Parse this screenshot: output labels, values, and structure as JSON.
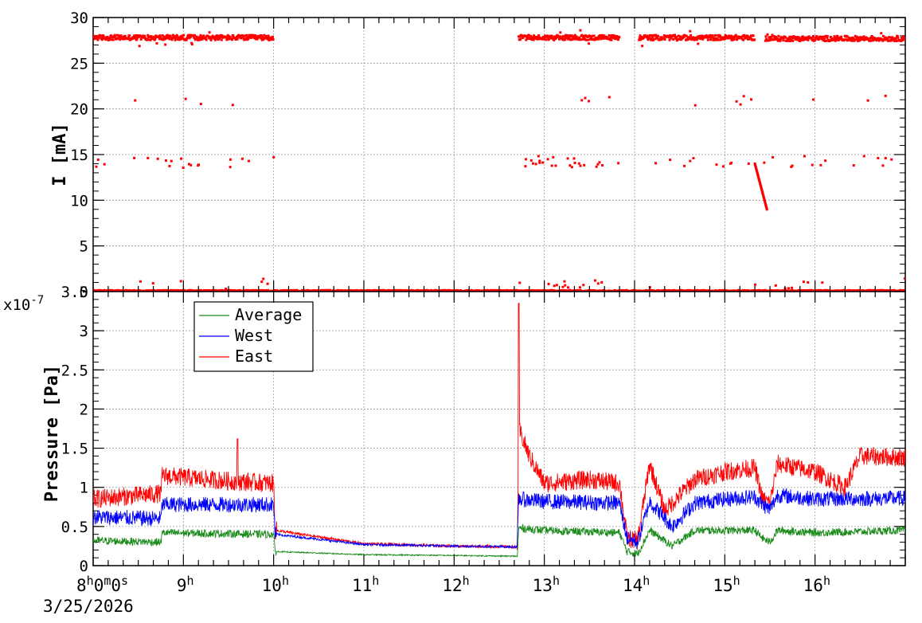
{
  "chart_data": [
    {
      "type": "scatter",
      "panel": "top",
      "ylabel": "I [mA]",
      "ylim": [
        0,
        30
      ],
      "yticks": [
        "0",
        "5",
        "10",
        "15",
        "20",
        "25",
        "30"
      ],
      "grid": true,
      "series": [
        {
          "color": "#ff0000",
          "segments": [
            {
              "x": [
                "8:00",
                "10:00"
              ],
              "y": 27.8
            },
            {
              "x": [
                "12:43",
                "13:50"
              ],
              "y": 27.8
            },
            {
              "x": [
                "14:03",
                "15:20"
              ],
              "y": 27.8
            },
            {
              "x": [
                "15:27",
                "17:00"
              ],
              "y": 27.7
            },
            {
              "x": [
                "8:00",
                "17:00"
              ],
              "y": 0.0
            }
          ],
          "sparse_bands_y": [
            14.2,
            21.0,
            0.8
          ],
          "decay_segment": {
            "x": [
              "15:20",
              "15:28"
            ],
            "y": [
              14.0,
              9.0
            ]
          }
        }
      ]
    },
    {
      "type": "line",
      "panel": "bottom",
      "ylabel": "Pressure [Pa]",
      "y_multiplier": "x10",
      "y_multiplier_exp": "-7",
      "ylim": [
        0,
        3.5
      ],
      "yticks": [
        "0",
        "0.5",
        "1",
        "1.5",
        "2",
        "2.5",
        "3",
        "3.5"
      ],
      "grid": true,
      "legend_position": "top-left",
      "legend": [
        {
          "name": "Average",
          "color": "#1a8a1a"
        },
        {
          "name": "West",
          "color": "#0000ff"
        },
        {
          "name": "East",
          "color": "#ff0000"
        }
      ],
      "series": [
        {
          "name": "East",
          "color": "#ff0000",
          "x": [
            "8:00",
            "8:45",
            "8:46",
            "9:30",
            "10:00",
            "10:01",
            "11:00",
            "12:00",
            "12:42",
            "12:43",
            "12:50",
            "13:00",
            "13:30",
            "13:50",
            "13:55",
            "14:02",
            "14:10",
            "14:20",
            "14:40",
            "15:00",
            "15:20",
            "15:25",
            "15:30",
            "15:35",
            "16:00",
            "16:20",
            "16:30",
            "17:00"
          ],
          "y": [
            0.85,
            0.92,
            1.15,
            1.08,
            1.05,
            0.45,
            0.28,
            0.25,
            0.24,
            1.75,
            1.4,
            1.05,
            1.1,
            1.05,
            0.35,
            0.32,
            1.3,
            0.7,
            1.1,
            1.2,
            1.25,
            0.85,
            0.8,
            1.3,
            1.2,
            1.0,
            1.4,
            1.38
          ],
          "spikes": [
            {
              "x": "12:43",
              "y": 3.35
            },
            {
              "x": "9:36",
              "y": 1.62
            }
          ],
          "noise": 0.12
        },
        {
          "name": "West",
          "color": "#0000ff",
          "x": [
            "8:00",
            "8:45",
            "8:46",
            "10:00",
            "10:01",
            "11:00",
            "12:00",
            "12:42",
            "12:43",
            "13:00",
            "13:50",
            "13:55",
            "14:02",
            "14:10",
            "14:25",
            "14:40",
            "15:00",
            "15:20",
            "15:25",
            "15:30",
            "15:35",
            "16:00",
            "17:00"
          ],
          "y": [
            0.62,
            0.6,
            0.78,
            0.78,
            0.4,
            0.27,
            0.25,
            0.24,
            0.85,
            0.82,
            0.8,
            0.35,
            0.3,
            0.82,
            0.5,
            0.8,
            0.85,
            0.88,
            0.78,
            0.72,
            0.9,
            0.85,
            0.86
          ],
          "noise": 0.1
        },
        {
          "name": "Average",
          "color": "#1a8a1a",
          "x": [
            "8:00",
            "8:45",
            "8:46",
            "10:00",
            "10:01",
            "11:00",
            "12:00",
            "12:42",
            "12:43",
            "13:00",
            "13:50",
            "13:55",
            "14:02",
            "14:10",
            "14:25",
            "14:40",
            "15:00",
            "15:20",
            "15:25",
            "15:30",
            "15:35",
            "16:00",
            "17:00"
          ],
          "y": [
            0.32,
            0.3,
            0.42,
            0.4,
            0.18,
            0.14,
            0.13,
            0.12,
            0.48,
            0.45,
            0.42,
            0.18,
            0.15,
            0.45,
            0.25,
            0.45,
            0.45,
            0.45,
            0.35,
            0.3,
            0.45,
            0.42,
            0.45
          ],
          "noise": 0.05
        }
      ]
    }
  ],
  "xaxis": {
    "first_label": {
      "h": "8",
      "m": "0",
      "s": "0"
    },
    "hour_labels": [
      {
        "num": "9",
        "sup": "h"
      },
      {
        "num": "10",
        "sup": "h"
      },
      {
        "num": "11",
        "sup": "h"
      },
      {
        "num": "12",
        "sup": "h"
      },
      {
        "num": "13",
        "sup": "h"
      },
      {
        "num": "14",
        "sup": "h"
      },
      {
        "num": "15",
        "sup": "h"
      },
      {
        "num": "16",
        "sup": "h"
      }
    ],
    "date": "3/25/2026",
    "xlim": [
      "8:00",
      "17:00"
    ]
  }
}
